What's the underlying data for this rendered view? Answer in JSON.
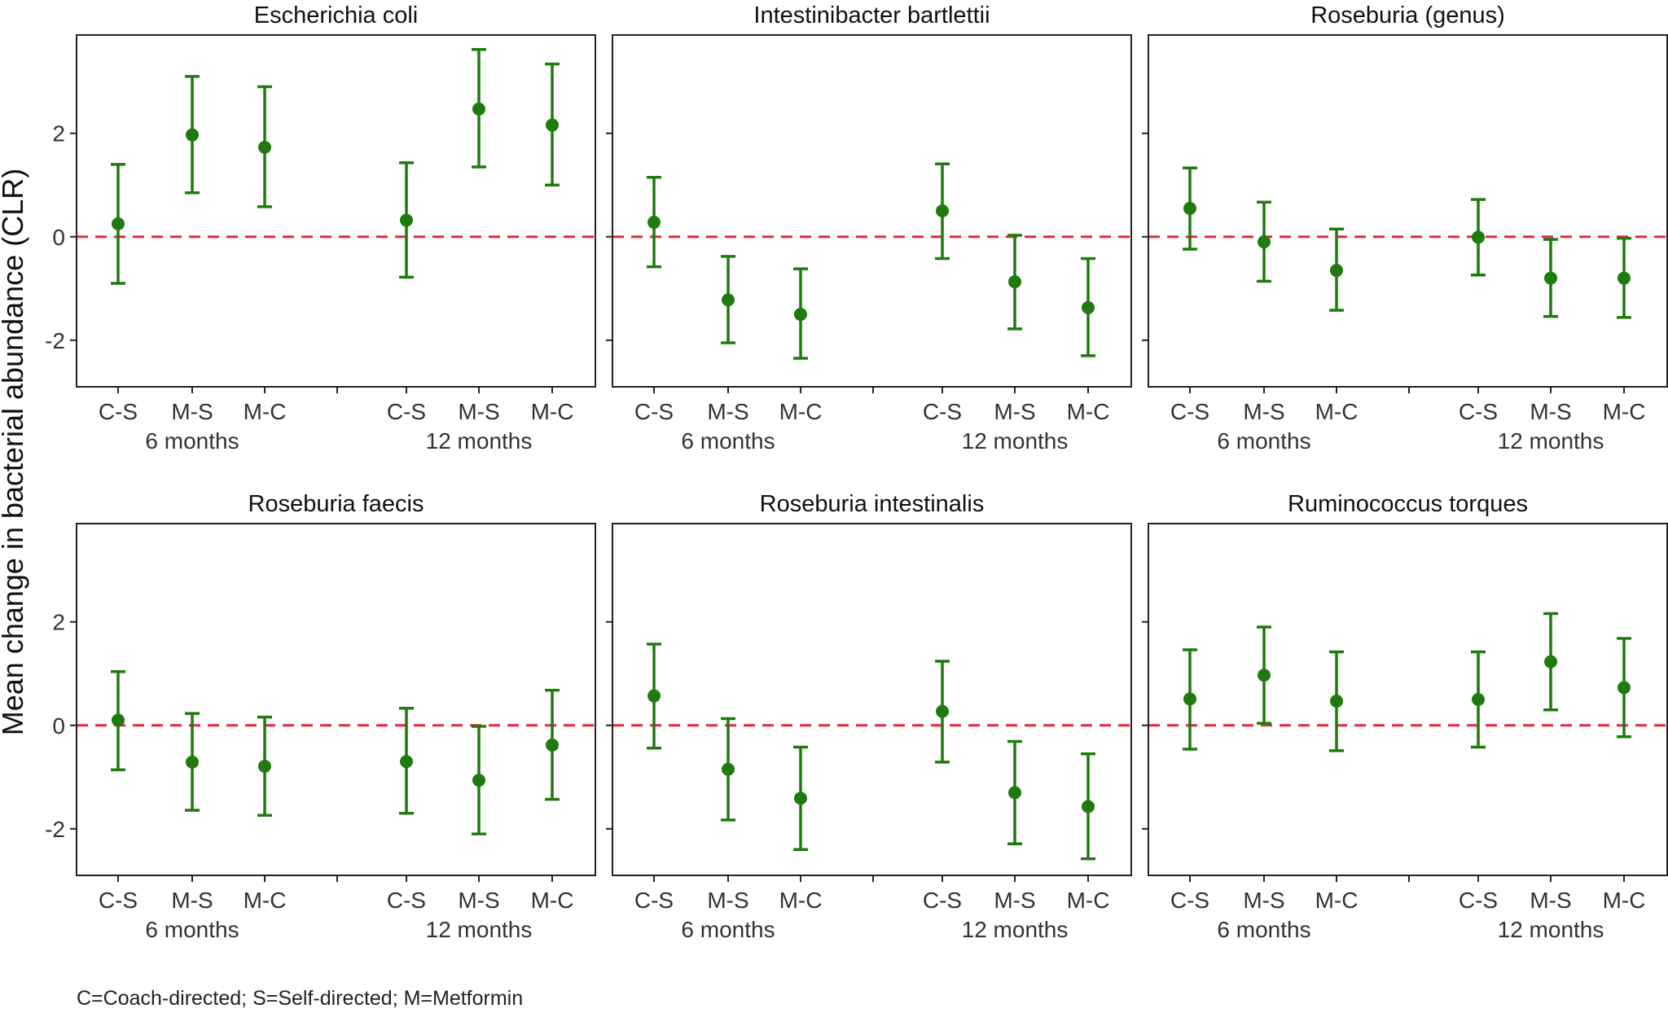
{
  "chart_data": {
    "type": "scatter",
    "subtype": "point-with-error-bars, faceted",
    "ylabel": "Mean change in bacterial abundance (CLR)",
    "ylim": [
      -2.9,
      3.9
    ],
    "y_ticks": [
      -2,
      0,
      2
    ],
    "y_tick_labels": [
      "-2",
      "0",
      "2"
    ],
    "reference_line": {
      "y": 0,
      "style": "dashed",
      "color": "#e8283c"
    },
    "groups": [
      {
        "label": "6 months",
        "categories": [
          "C-S",
          "M-S",
          "M-C"
        ]
      },
      {
        "label": "12 months",
        "categories": [
          "C-S",
          "M-S",
          "M-C"
        ]
      }
    ],
    "point_color": "#1f7a0f",
    "footnote": "C=Coach-directed; S=Self-directed; M=Metformin",
    "panels": [
      {
        "title": "Escherichia coli",
        "estimates": [
          0.25,
          1.97,
          1.73,
          0.32,
          2.47,
          2.16
        ],
        "lower": [
          -0.9,
          0.85,
          0.58,
          -0.78,
          1.35,
          1.0
        ],
        "upper": [
          1.4,
          3.1,
          2.9,
          1.43,
          3.62,
          3.34
        ]
      },
      {
        "title": "Intestinibacter bartlettii",
        "estimates": [
          0.28,
          -1.22,
          -1.5,
          0.5,
          -0.87,
          -1.37
        ],
        "lower": [
          -0.58,
          -2.05,
          -2.35,
          -0.42,
          -1.78,
          -2.3
        ],
        "upper": [
          1.15,
          -0.38,
          -0.62,
          1.41,
          0.03,
          -0.42
        ]
      },
      {
        "title": "Roseburia (genus)",
        "estimates": [
          0.55,
          -0.1,
          -0.65,
          -0.01,
          -0.8,
          -0.8
        ],
        "lower": [
          -0.24,
          -0.86,
          -1.42,
          -0.74,
          -1.54,
          -1.56
        ],
        "upper": [
          1.33,
          0.67,
          0.15,
          0.72,
          -0.05,
          -0.03
        ]
      },
      {
        "title": "Roseburia faecis",
        "estimates": [
          0.1,
          -0.71,
          -0.79,
          -0.7,
          -1.06,
          -0.38
        ],
        "lower": [
          -0.86,
          -1.64,
          -1.74,
          -1.7,
          -2.1,
          -1.43
        ],
        "upper": [
          1.04,
          0.23,
          0.16,
          0.33,
          -0.02,
          0.68
        ]
      },
      {
        "title": "Roseburia intestinalis",
        "estimates": [
          0.57,
          -0.85,
          -1.41,
          0.27,
          -1.3,
          -1.57
        ],
        "lower": [
          -0.44,
          -1.83,
          -2.4,
          -0.71,
          -2.29,
          -2.58
        ],
        "upper": [
          1.57,
          0.13,
          -0.42,
          1.24,
          -0.31,
          -0.55
        ]
      },
      {
        "title": "Ruminococcus torques",
        "estimates": [
          0.51,
          0.97,
          0.47,
          0.5,
          1.23,
          0.73
        ],
        "lower": [
          -0.46,
          0.04,
          -0.49,
          -0.42,
          0.3,
          -0.22
        ],
        "upper": [
          1.46,
          1.9,
          1.42,
          1.42,
          2.16,
          1.68
        ]
      }
    ]
  }
}
